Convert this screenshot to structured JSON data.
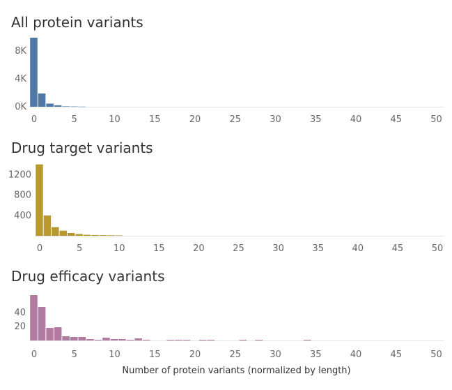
{
  "chart_data": [
    {
      "type": "bar",
      "title": "All protein variants",
      "color": "#4e79a7",
      "bin_width": 1,
      "bin_starts": [
        0,
        1,
        2,
        3,
        4,
        5,
        6
      ],
      "values": [
        9900,
        1900,
        450,
        200,
        60,
        40,
        20
      ],
      "ylim": [
        0,
        10000
      ],
      "yticks": [
        {
          "v": 0,
          "label": "0K"
        },
        {
          "v": 4000,
          "label": "4K"
        },
        {
          "v": 8000,
          "label": "8K"
        }
      ],
      "xlim": [
        0,
        50
      ],
      "xticks": [
        0,
        5,
        10,
        15,
        20,
        25,
        30,
        35,
        40,
        45,
        50
      ],
      "xlabel": "",
      "ylabel": ""
    },
    {
      "type": "bar",
      "title": "Drug target variants",
      "color": "#b8982f",
      "bin_width": 1,
      "bin_starts": [
        0,
        1,
        2,
        3,
        4,
        5,
        6,
        7,
        8,
        9,
        10
      ],
      "values": [
        1400,
        400,
        170,
        100,
        55,
        35,
        20,
        15,
        12,
        10,
        8
      ],
      "ylim": [
        0,
        1450
      ],
      "yticks": [
        {
          "v": 400,
          "label": "400"
        },
        {
          "v": 800,
          "label": "800"
        },
        {
          "v": 1200,
          "label": "1200"
        }
      ],
      "xlim": [
        0,
        50
      ],
      "xticks": [
        0,
        5,
        10,
        15,
        20,
        25,
        30,
        35,
        40,
        45,
        50
      ],
      "xlabel": "",
      "ylabel": ""
    },
    {
      "type": "bar",
      "title": "Drug efficacy variants",
      "color": "#b07aa1",
      "bin_width": 1,
      "bin_starts": [
        0,
        1,
        2,
        3,
        4,
        5,
        6,
        7,
        8,
        9,
        10,
        11,
        12,
        13,
        14,
        15,
        16,
        17,
        18,
        19,
        20,
        21,
        22,
        23,
        24,
        25,
        26,
        27,
        28,
        29,
        30,
        31,
        32,
        33,
        34
      ],
      "values": [
        65,
        48,
        18,
        19,
        6,
        5,
        5,
        2,
        1,
        4,
        2,
        2,
        1,
        3,
        1,
        0,
        0,
        1,
        1,
        1,
        0,
        1,
        1,
        0,
        0,
        0,
        1,
        0,
        1,
        0,
        0,
        0,
        0,
        0,
        1
      ],
      "ylim": [
        0,
        68
      ],
      "yticks": [
        {
          "v": 20,
          "label": "20"
        },
        {
          "v": 40,
          "label": "40"
        }
      ],
      "xlim": [
        0,
        50
      ],
      "xticks": [
        0,
        5,
        10,
        15,
        20,
        25,
        30,
        35,
        40,
        45,
        50
      ],
      "xlabel": "Number of protein variants (normalized by length)",
      "ylabel": ""
    }
  ]
}
